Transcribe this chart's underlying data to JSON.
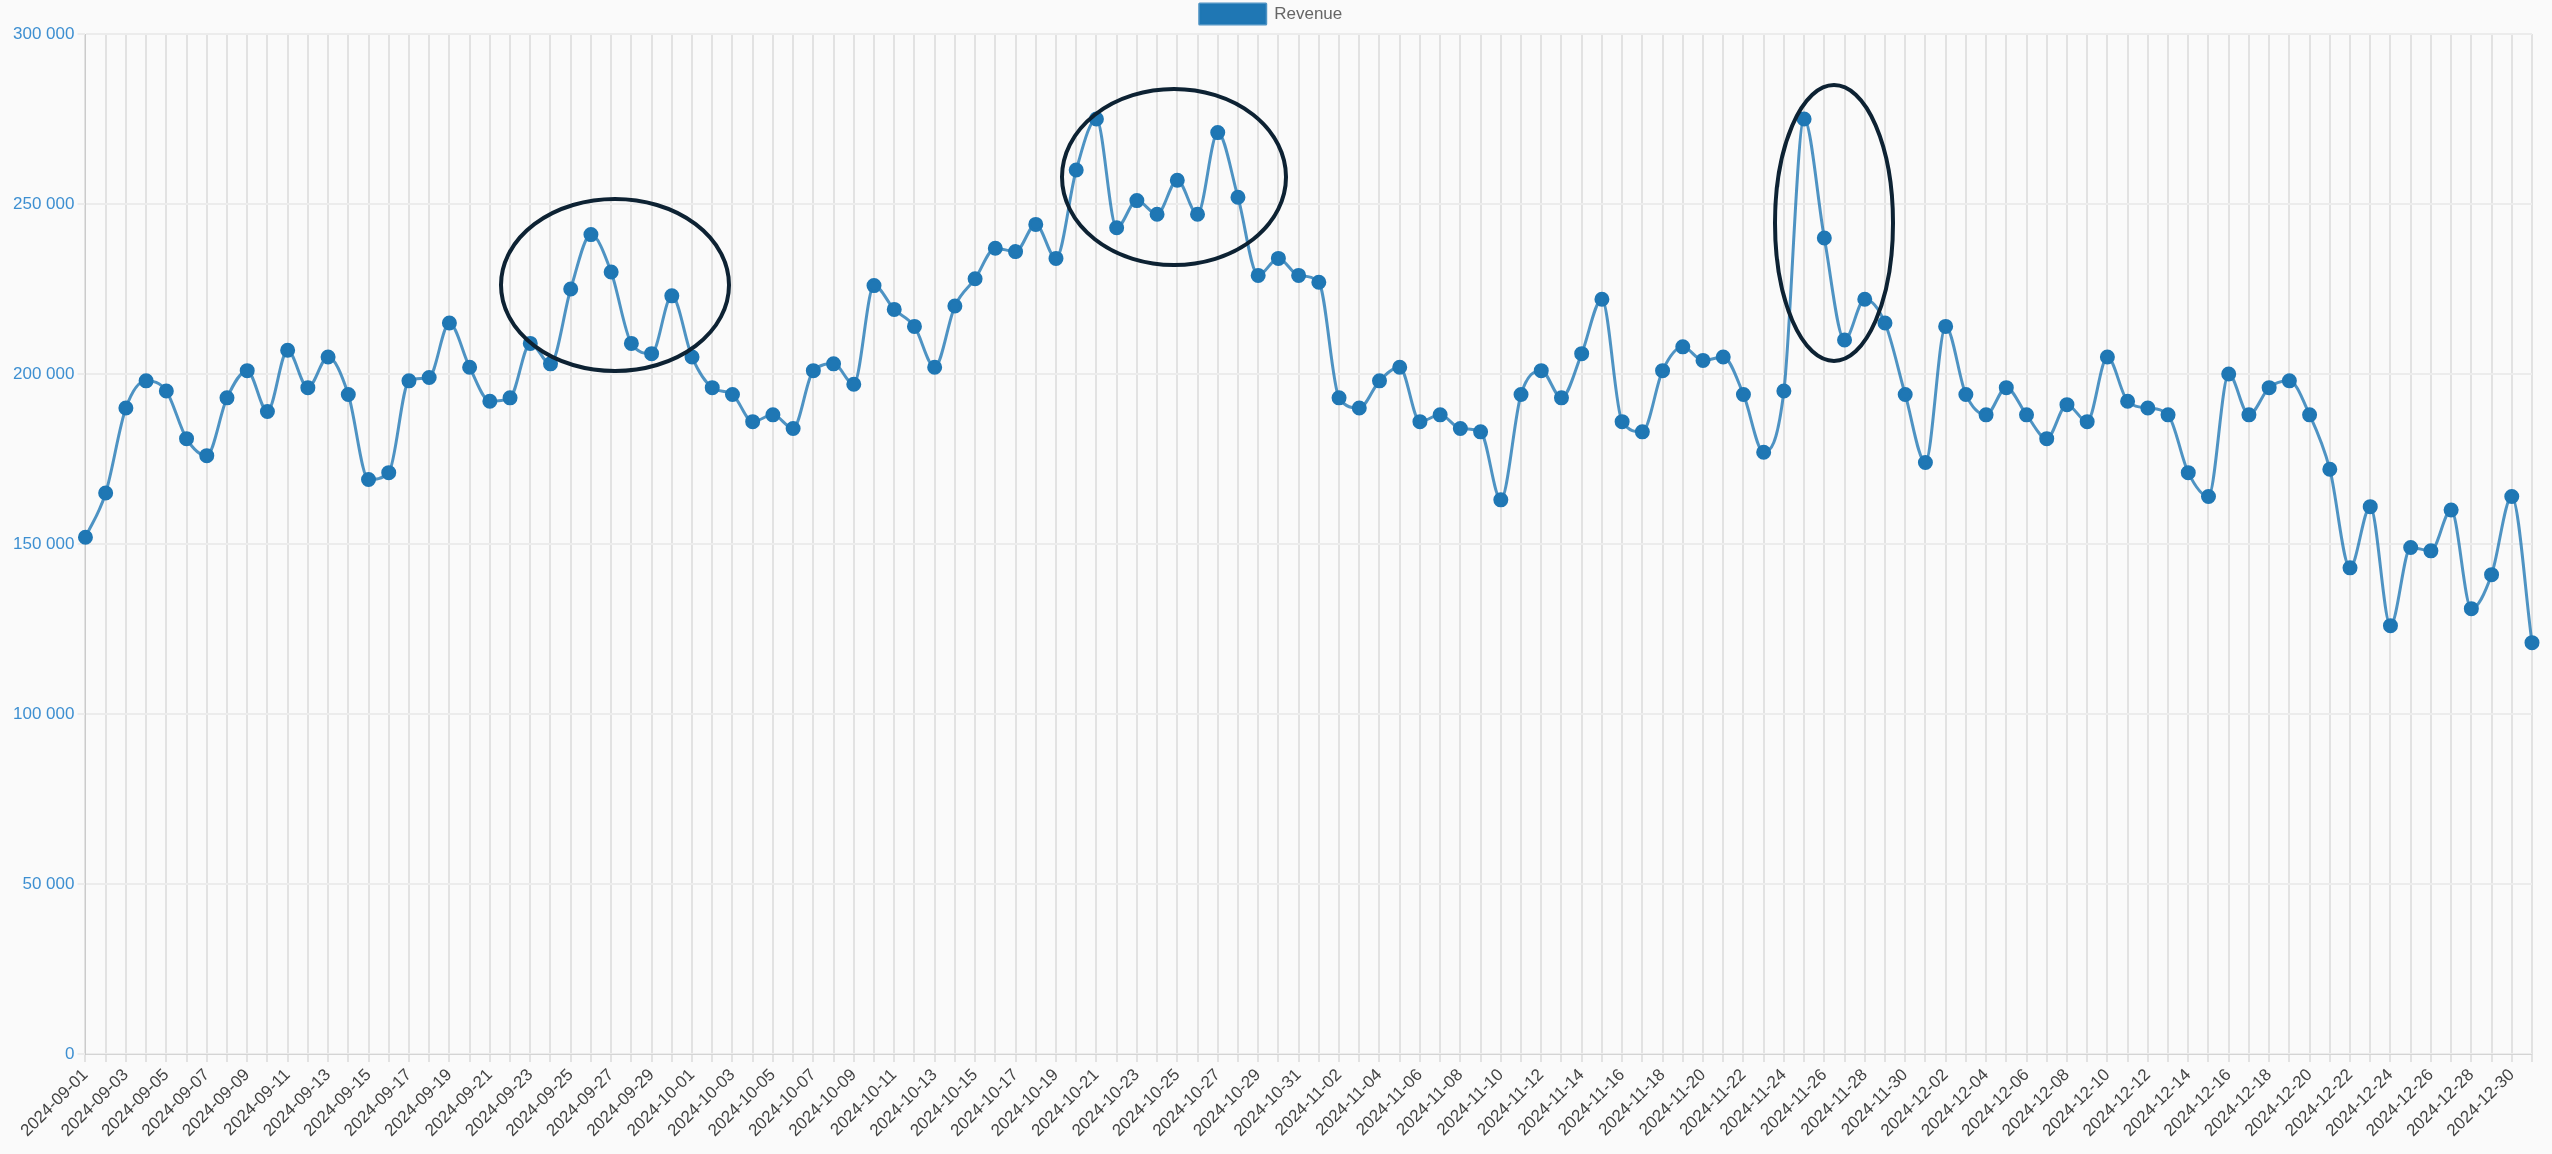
{
  "chart_data": {
    "type": "line",
    "categories": [
      "2024-09-01",
      null,
      "2024-09-03",
      null,
      "2024-09-05",
      null,
      "2024-09-07",
      null,
      "2024-09-09",
      null,
      "2024-09-11",
      null,
      "2024-09-13",
      null,
      "2024-09-15",
      null,
      "2024-09-17",
      null,
      "2024-09-19",
      null,
      "2024-09-21",
      null,
      "2024-09-23",
      null,
      "2024-09-25",
      null,
      "2024-09-27",
      null,
      "2024-09-29",
      null,
      "2024-10-01",
      null,
      "2024-10-03",
      null,
      "2024-10-05",
      null,
      "2024-10-07",
      null,
      "2024-10-09",
      null,
      "2024-10-11",
      null,
      "2024-10-13",
      null,
      "2024-10-15",
      null,
      "2024-10-17",
      null,
      "2024-10-19",
      null,
      "2024-10-21",
      null,
      "2024-10-23",
      null,
      "2024-10-25",
      null,
      "2024-10-27",
      null,
      "2024-10-29",
      null,
      "2024-10-31",
      null,
      "2024-11-02",
      null,
      "2024-11-04",
      null,
      "2024-11-06",
      null,
      "2024-11-08",
      null,
      "2024-11-10",
      null,
      "2024-11-12",
      null,
      "2024-11-14",
      null,
      "2024-11-16",
      null,
      "2024-11-18",
      null,
      "2024-11-20",
      null,
      "2024-11-22",
      null,
      "2024-11-24",
      null,
      "2024-11-26",
      null,
      "2024-11-28",
      null,
      "2024-11-30",
      null,
      "2024-12-02",
      null,
      "2024-12-04",
      null,
      "2024-12-06",
      null,
      "2024-12-08",
      null,
      "2024-12-10",
      null,
      "2024-12-12",
      null,
      "2024-12-14",
      null,
      "2024-12-16",
      null,
      "2024-12-18",
      null,
      "2024-12-20",
      null,
      "2024-12-22",
      null,
      "2024-12-24",
      null,
      "2024-12-26",
      null,
      "2024-12-28",
      null,
      "2024-12-30",
      null
    ],
    "series": [
      {
        "name": "Revenue",
        "color": "#1f77b4",
        "values": [
          152000,
          165000,
          190000,
          198000,
          195000,
          181000,
          176000,
          193000,
          201000,
          189000,
          207000,
          196000,
          205000,
          194000,
          169000,
          171000,
          198000,
          199000,
          215000,
          202000,
          192000,
          193000,
          209000,
          203000,
          225000,
          241000,
          230000,
          209000,
          206000,
          223000,
          205000,
          196000,
          194000,
          186000,
          188000,
          184000,
          201000,
          203000,
          197000,
          226000,
          219000,
          214000,
          202000,
          220000,
          228000,
          237000,
          236000,
          244000,
          234000,
          260000,
          275000,
          243000,
          251000,
          247000,
          257000,
          247000,
          271000,
          252000,
          229000,
          234000,
          229000,
          227000,
          193000,
          190000,
          198000,
          202000,
          186000,
          188000,
          184000,
          183000,
          163000,
          194000,
          201000,
          193000,
          206000,
          222000,
          186000,
          183000,
          201000,
          208000,
          204000,
          205000,
          194000,
          177000,
          195000,
          275000,
          240000,
          210000,
          222000,
          215000,
          194000,
          174000,
          214000,
          194000,
          188000,
          196000,
          188000,
          181000,
          191000,
          186000,
          205000,
          192000,
          190000,
          188000,
          171000,
          164000,
          200000,
          188000,
          196000,
          198000,
          188000,
          172000,
          143000,
          161000,
          126000,
          149000,
          148000,
          160000,
          131000,
          141000,
          164000,
          121000
        ]
      }
    ],
    "ylim": [
      0,
      300000
    ],
    "yticks": [
      {
        "value": 0,
        "label": "0"
      },
      {
        "value": 50000,
        "label": "50 000"
      },
      {
        "value": 100000,
        "label": "100 000"
      },
      {
        "value": 150000,
        "label": "150 000"
      },
      {
        "value": 200000,
        "label": "200 000"
      },
      {
        "value": 250000,
        "label": "250 000"
      },
      {
        "value": 300000,
        "label": "300 000"
      }
    ],
    "grid": true,
    "legend": "top",
    "marker": "circle",
    "line_style": "solid"
  }
}
